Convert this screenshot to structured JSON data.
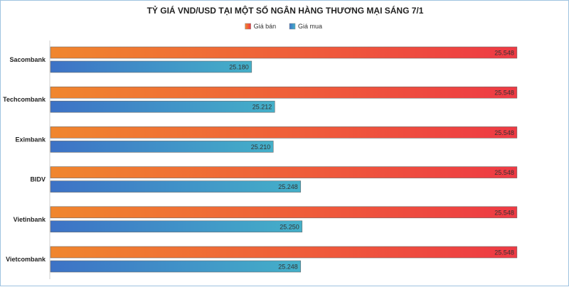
{
  "chart_data": {
    "type": "bar",
    "orientation": "horizontal",
    "title": "TỶ GIÁ VND/USD TẠI MỘT SỐ NGÂN HÀNG THƯƠNG MẠI SÁNG 7/1",
    "xlabel": "",
    "ylabel": "",
    "categories": [
      "Sacombank",
      "Techcombank",
      "Eximbank",
      "BIDV",
      "Vietinbank",
      "Vietcombank"
    ],
    "series": [
      {
        "name": "Giá bán",
        "values": [
          25548,
          25548,
          25548,
          25548,
          25548,
          25548
        ],
        "labels": [
          "25.548",
          "25.548",
          "25.548",
          "25.548",
          "25.548",
          "25.548"
        ],
        "color_start": "#f0862e",
        "color_end": "#ee3a44"
      },
      {
        "name": "Giá mua",
        "values": [
          25180,
          25212,
          25210,
          25248,
          25250,
          25248
        ],
        "labels": [
          "25.180",
          "25.212",
          "25.210",
          "25.248",
          "25.250",
          "25.248"
        ],
        "color_start": "#3d72c6",
        "color_end": "#44b0c9"
      }
    ],
    "xlim": [
      24900,
      25560
    ],
    "grid": false,
    "legend_position": "top"
  }
}
